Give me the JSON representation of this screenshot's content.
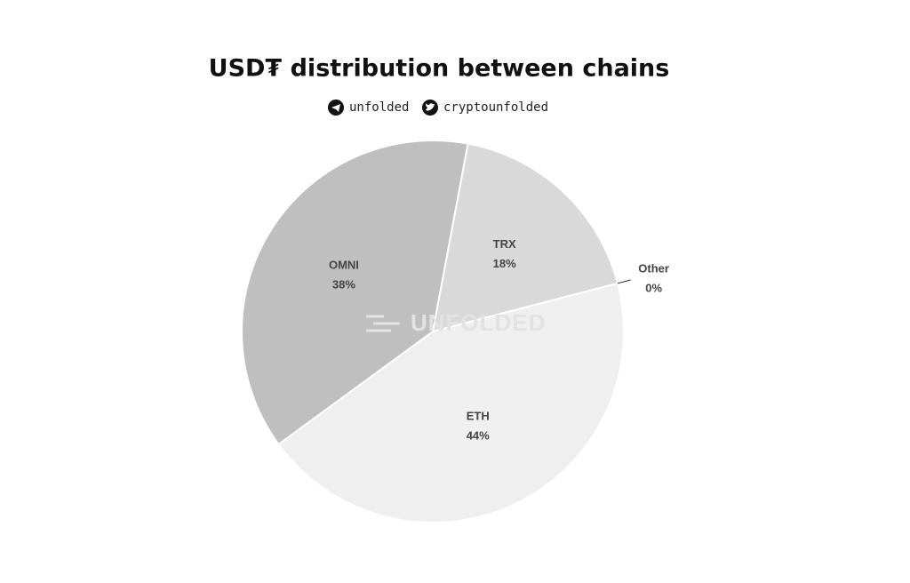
{
  "chart_data": {
    "type": "pie",
    "title": "USD₮ distribution between chains",
    "subtitle": {
      "telegram": "unfolded",
      "twitter": "cryptounfolded"
    },
    "watermark": "UNFOLDED",
    "categories": [
      "TRX",
      "Other",
      "ETH",
      "OMNI"
    ],
    "values": [
      18,
      0,
      44,
      38
    ],
    "value_labels": [
      "18%",
      "0%",
      "44%",
      "38%"
    ],
    "colors": [
      "#d9d9d9",
      "#222222",
      "#efefef",
      "#bfbfbf"
    ]
  }
}
